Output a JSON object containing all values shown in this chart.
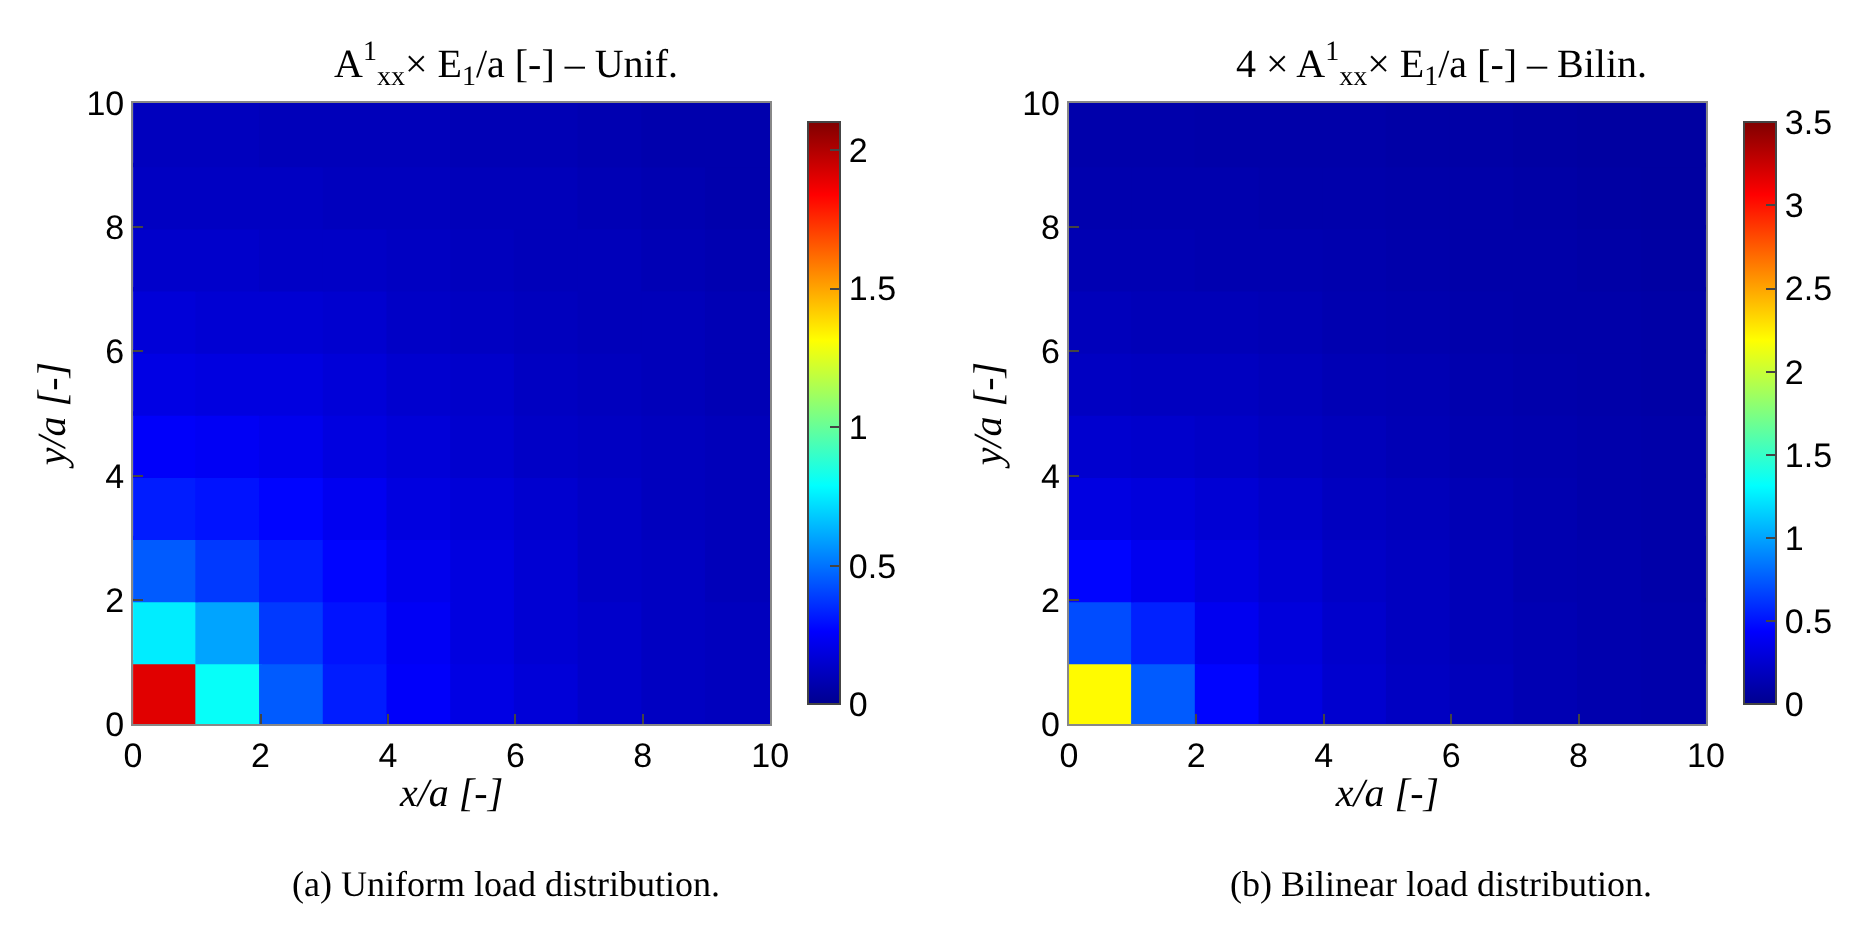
{
  "chart_data": [
    {
      "type": "scatter",
      "marker": "square",
      "title": "A$^{1}$$_{xx}$× E$_{1}$/a [-] – Unif.",
      "xlabel": "x/a [-]",
      "ylabel": "y/a [-]",
      "x": [
        0.5,
        1.5,
        2.5,
        3.5,
        4.5,
        5.5,
        6.5,
        7.5,
        8.5,
        9.5,
        0.5,
        1.5,
        2.5,
        3.5,
        4.5,
        5.5,
        6.5,
        7.5,
        8.5,
        9.5,
        0.5,
        1.5,
        2.5,
        3.5,
        4.5,
        5.5,
        6.5,
        7.5,
        8.5,
        9.5,
        0.5,
        1.5,
        2.5,
        3.5,
        4.5,
        5.5,
        6.5,
        7.5,
        8.5,
        9.5,
        0.5,
        1.5,
        2.5,
        3.5,
        4.5,
        5.5,
        6.5,
        7.5,
        8.5,
        9.5,
        0.5,
        1.5,
        2.5,
        3.5,
        4.5,
        5.5,
        6.5,
        7.5,
        8.5,
        9.5,
        0.5,
        1.5,
        2.5,
        3.5,
        4.5,
        5.5,
        6.5,
        7.5,
        8.5,
        9.5,
        0.5,
        1.5,
        2.5,
        3.5,
        4.5,
        5.5,
        6.5,
        7.5,
        8.5,
        9.5,
        0.5,
        1.5,
        2.5,
        3.5,
        4.5,
        5.5,
        6.5,
        7.5,
        8.5,
        9.5,
        0.5,
        1.5,
        2.5,
        3.5,
        4.5,
        5.5,
        6.5,
        7.5,
        8.5,
        9.5
      ],
      "values": [
        0.5,
        0.5,
        0.5,
        0.5,
        0.5,
        0.5,
        0.5,
        0.5,
        0.5,
        0.5,
        1.5,
        1.5,
        1.5,
        1.5,
        1.5,
        1.5,
        1.5,
        1.5,
        1.5,
        1.5,
        2.5,
        2.5,
        2.5,
        2.5,
        2.5,
        2.5,
        2.5,
        2.5,
        2.5,
        2.5,
        3.5,
        3.5,
        3.5,
        3.5,
        3.5,
        3.5,
        3.5,
        3.5,
        3.5,
        3.5,
        4.5,
        4.5,
        4.5,
        4.5,
        4.5,
        4.5,
        4.5,
        4.5,
        4.5,
        4.5,
        5.5,
        5.5,
        5.5,
        5.5,
        5.5,
        5.5,
        5.5,
        5.5,
        5.5,
        5.5,
        6.5,
        6.5,
        6.5,
        6.5,
        6.5,
        6.5,
        6.5,
        6.5,
        6.5,
        6.5,
        7.5,
        7.5,
        7.5,
        7.5,
        7.5,
        7.5,
        7.5,
        7.5,
        7.5,
        7.5,
        8.5,
        8.5,
        8.5,
        8.5,
        8.5,
        8.5,
        8.5,
        8.5,
        8.5,
        8.5,
        9.5,
        9.5,
        9.5,
        9.5,
        9.5,
        9.5,
        9.5,
        9.5,
        9.5,
        9.5
      ],
      "cvalues": [
        1.9,
        0.8,
        0.45,
        0.32,
        0.25,
        0.2,
        0.17,
        0.14,
        0.12,
        0.11,
        0.75,
        0.6,
        0.38,
        0.3,
        0.24,
        0.19,
        0.16,
        0.14,
        0.12,
        0.11,
        0.45,
        0.38,
        0.32,
        0.27,
        0.22,
        0.19,
        0.16,
        0.13,
        0.12,
        0.1,
        0.32,
        0.3,
        0.27,
        0.23,
        0.19,
        0.17,
        0.15,
        0.13,
        0.11,
        0.1,
        0.25,
        0.24,
        0.22,
        0.19,
        0.17,
        0.15,
        0.13,
        0.12,
        0.11,
        0.1,
        0.2,
        0.19,
        0.19,
        0.17,
        0.15,
        0.14,
        0.12,
        0.11,
        0.1,
        0.09,
        0.17,
        0.16,
        0.16,
        0.15,
        0.13,
        0.12,
        0.11,
        0.1,
        0.1,
        0.09,
        0.14,
        0.14,
        0.13,
        0.13,
        0.12,
        0.11,
        0.1,
        0.1,
        0.09,
        0.08,
        0.12,
        0.12,
        0.12,
        0.11,
        0.11,
        0.1,
        0.1,
        0.09,
        0.08,
        0.07,
        0.11,
        0.11,
        0.1,
        0.1,
        0.1,
        0.09,
        0.09,
        0.08,
        0.07,
        0.07
      ],
      "xlim": [
        0,
        10
      ],
      "ylim": [
        0,
        10
      ],
      "xticks": [
        0,
        2,
        4,
        6,
        8,
        10
      ],
      "yticks": [
        0,
        2,
        4,
        6,
        8,
        10
      ],
      "clim": [
        0,
        2.1
      ],
      "cticks": [
        0,
        0.5,
        1,
        1.5,
        2
      ],
      "annotations": [
        "(a) Uniform load distribution."
      ]
    },
    {
      "type": "scatter",
      "marker": "square",
      "title": "4 × A$^{1}$$_{xx}$× E$_{1}$/a [-] – Bilin.",
      "xlabel": "x/a [-]",
      "ylabel": "y/a [-]",
      "x": [
        0.5,
        1.5,
        2.5,
        3.5,
        4.5,
        5.5,
        6.5,
        7.5,
        8.5,
        9.5,
        0.5,
        1.5,
        2.5,
        3.5,
        4.5,
        5.5,
        6.5,
        7.5,
        8.5,
        9.5,
        0.5,
        1.5,
        2.5,
        3.5,
        4.5,
        5.5,
        6.5,
        7.5,
        8.5,
        9.5,
        0.5,
        1.5,
        2.5,
        3.5,
        4.5,
        5.5,
        6.5,
        7.5,
        8.5,
        9.5,
        0.5,
        1.5,
        2.5,
        3.5,
        4.5,
        5.5,
        6.5,
        7.5,
        8.5,
        9.5,
        0.5,
        1.5,
        2.5,
        3.5,
        4.5,
        5.5,
        6.5,
        7.5,
        8.5,
        9.5,
        0.5,
        1.5,
        2.5,
        3.5,
        4.5,
        5.5,
        6.5,
        7.5,
        8.5,
        9.5,
        0.5,
        1.5,
        2.5,
        3.5,
        4.5,
        5.5,
        6.5,
        7.5,
        8.5,
        9.5,
        0.5,
        1.5,
        2.5,
        3.5,
        4.5,
        5.5,
        6.5,
        7.5,
        8.5,
        9.5,
        0.5,
        1.5,
        2.5,
        3.5,
        4.5,
        5.5,
        6.5,
        7.5,
        8.5,
        9.5
      ],
      "values": [
        0.5,
        0.5,
        0.5,
        0.5,
        0.5,
        0.5,
        0.5,
        0.5,
        0.5,
        0.5,
        1.5,
        1.5,
        1.5,
        1.5,
        1.5,
        1.5,
        1.5,
        1.5,
        1.5,
        1.5,
        2.5,
        2.5,
        2.5,
        2.5,
        2.5,
        2.5,
        2.5,
        2.5,
        2.5,
        2.5,
        3.5,
        3.5,
        3.5,
        3.5,
        3.5,
        3.5,
        3.5,
        3.5,
        3.5,
        3.5,
        4.5,
        4.5,
        4.5,
        4.5,
        4.5,
        4.5,
        4.5,
        4.5,
        4.5,
        4.5,
        5.5,
        5.5,
        5.5,
        5.5,
        5.5,
        5.5,
        5.5,
        5.5,
        5.5,
        5.5,
        6.5,
        6.5,
        6.5,
        6.5,
        6.5,
        6.5,
        6.5,
        6.5,
        6.5,
        6.5,
        7.5,
        7.5,
        7.5,
        7.5,
        7.5,
        7.5,
        7.5,
        7.5,
        7.5,
        7.5,
        8.5,
        8.5,
        8.5,
        8.5,
        8.5,
        8.5,
        8.5,
        8.5,
        8.5,
        8.5,
        9.5,
        9.5,
        9.5,
        9.5,
        9.5,
        9.5,
        9.5,
        9.5,
        9.5,
        9.5
      ],
      "cvalues": [
        2.2,
        0.75,
        0.45,
        0.32,
        0.25,
        0.2,
        0.17,
        0.14,
        0.12,
        0.11,
        0.7,
        0.55,
        0.38,
        0.3,
        0.24,
        0.19,
        0.16,
        0.14,
        0.12,
        0.11,
        0.45,
        0.38,
        0.32,
        0.27,
        0.22,
        0.19,
        0.16,
        0.13,
        0.12,
        0.1,
        0.32,
        0.3,
        0.27,
        0.23,
        0.19,
        0.17,
        0.15,
        0.13,
        0.11,
        0.1,
        0.25,
        0.24,
        0.22,
        0.19,
        0.17,
        0.15,
        0.13,
        0.12,
        0.11,
        0.1,
        0.2,
        0.19,
        0.19,
        0.17,
        0.15,
        0.14,
        0.12,
        0.11,
        0.1,
        0.09,
        0.17,
        0.16,
        0.16,
        0.15,
        0.13,
        0.12,
        0.11,
        0.1,
        0.1,
        0.09,
        0.14,
        0.14,
        0.13,
        0.13,
        0.12,
        0.11,
        0.1,
        0.1,
        0.09,
        0.08,
        0.12,
        0.12,
        0.12,
        0.11,
        0.11,
        0.1,
        0.1,
        0.09,
        0.08,
        0.07,
        0.11,
        0.11,
        0.1,
        0.1,
        0.1,
        0.09,
        0.09,
        0.08,
        0.07,
        0.07
      ],
      "xlim": [
        0,
        10
      ],
      "ylim": [
        0,
        10
      ],
      "xticks": [
        0,
        2,
        4,
        6,
        8,
        10
      ],
      "yticks": [
        0,
        2,
        4,
        6,
        8,
        10
      ],
      "clim": [
        0,
        3.5
      ],
      "cticks": [
        0,
        0.5,
        1,
        1.5,
        2,
        2.5,
        3,
        3.5
      ],
      "annotations": [
        "(b) Bilinear load distribution."
      ]
    }
  ]
}
